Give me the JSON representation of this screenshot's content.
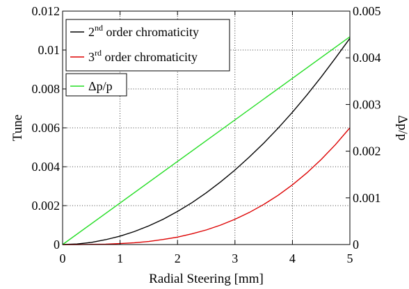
{
  "chart_data": {
    "type": "line",
    "xlabel": "Radial Steering [mm]",
    "ylabel_left": "Tune",
    "ylabel_right": "Δp/p",
    "xlim": [
      0,
      5
    ],
    "ylim_left": [
      0,
      0.012
    ],
    "ylim_right": [
      0,
      0.005
    ],
    "x_ticks": [
      0,
      1,
      2,
      3,
      4,
      5
    ],
    "x_tick_labels": [
      "0",
      "1",
      "2",
      "3",
      "4",
      "5"
    ],
    "y_left_ticks": [
      0,
      0.002,
      0.004,
      0.006,
      0.008,
      0.01,
      0.012
    ],
    "y_left_tick_labels": [
      "0",
      "0.002",
      "0.004",
      "0.006",
      "0.008",
      "0.01",
      "0.012"
    ],
    "y_right_ticks": [
      0,
      0.001,
      0.002,
      0.003,
      0.004,
      0.005
    ],
    "y_right_tick_labels": [
      "0",
      "0.001",
      "0.002",
      "0.003",
      "0.004",
      "0.005"
    ],
    "grid": true,
    "grid_style": "dotted",
    "series": [
      {
        "name_base": "2",
        "name_sup": "nd",
        "name_rest": " order chromaticity",
        "axis": "left",
        "color": "#000000",
        "x": [
          0,
          0.25,
          0.5,
          0.75,
          1,
          1.25,
          1.5,
          1.75,
          2,
          2.25,
          2.5,
          2.75,
          3,
          3.25,
          3.5,
          3.75,
          4,
          4.25,
          4.5,
          4.75,
          5
        ],
        "y": [
          0,
          3e-05,
          0.00011,
          0.00025,
          0.00043,
          0.00067,
          0.00096,
          0.0013,
          0.0017,
          0.00215,
          0.00266,
          0.00322,
          0.00383,
          0.0045,
          0.00521,
          0.00598,
          0.0068,
          0.00768,
          0.00861,
          0.00959,
          0.0106
        ]
      },
      {
        "name_base": "3",
        "name_sup": "rd",
        "name_rest": " order chromaticity",
        "axis": "left",
        "color": "#dd0000",
        "x": [
          0,
          0.25,
          0.5,
          0.75,
          1,
          1.25,
          1.5,
          1.75,
          2,
          2.25,
          2.5,
          2.75,
          3,
          3.25,
          3.5,
          3.75,
          4,
          4.25,
          4.5,
          4.75,
          5
        ],
        "y": [
          0,
          0,
          1e-05,
          2e-05,
          5e-05,
          9e-05,
          0.00016,
          0.00026,
          0.00038,
          0.00055,
          0.00075,
          0.001,
          0.0013,
          0.00165,
          0.00206,
          0.00253,
          0.00307,
          0.00368,
          0.00437,
          0.00514,
          0.006
        ]
      },
      {
        "name_base": "Δp/p",
        "name_sup": "",
        "name_rest": "",
        "axis": "right",
        "color": "#22dd22",
        "x": [
          0,
          5
        ],
        "y": [
          0,
          0.00445
        ]
      }
    ]
  }
}
